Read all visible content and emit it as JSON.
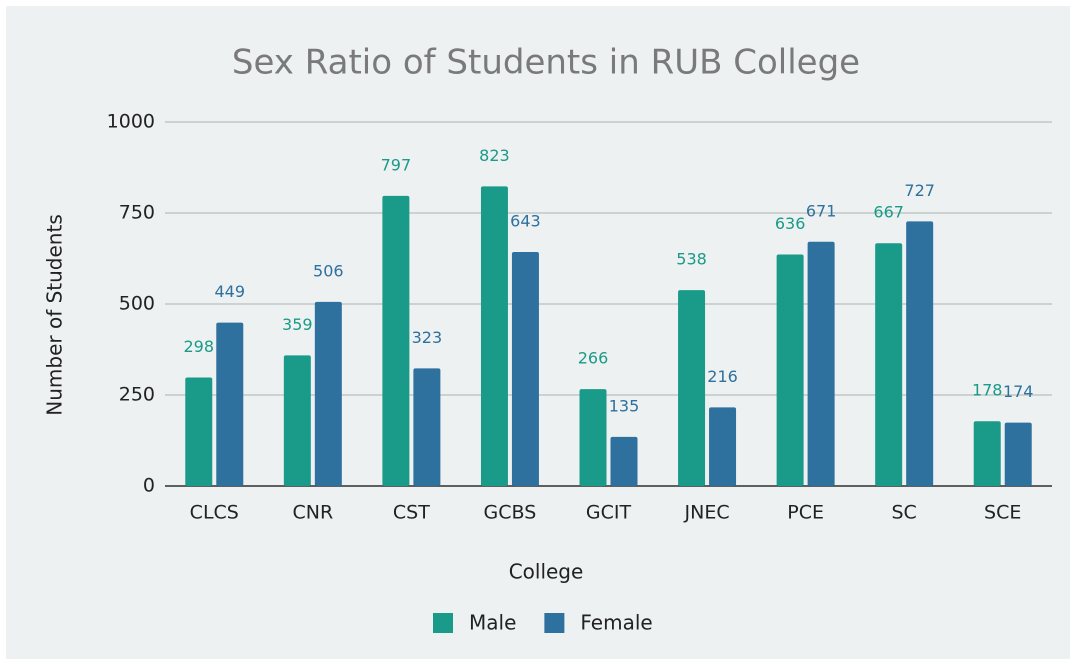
{
  "chart_data": {
    "type": "bar",
    "title": "Sex Ratio of Students in RUB College",
    "x_label": "College",
    "y_label": "Number of Students",
    "categories": [
      "CLCS",
      "CNR",
      "CST",
      "GCBS",
      "GCIT",
      "JNEC",
      "PCE",
      "SC",
      "SCE"
    ],
    "series": [
      {
        "name": "Male",
        "color": "#1a9a88",
        "values": [
          298,
          359,
          797,
          823,
          266,
          538,
          636,
          667,
          178
        ]
      },
      {
        "name": "Female",
        "color": "#2e709e",
        "values": [
          449,
          506,
          323,
          643,
          135,
          216,
          671,
          727,
          174
        ]
      }
    ],
    "ylim": [
      0,
      1000
    ],
    "yticks": [
      0,
      250,
      500,
      750,
      1000
    ],
    "grid": true,
    "legend": "bottom"
  }
}
